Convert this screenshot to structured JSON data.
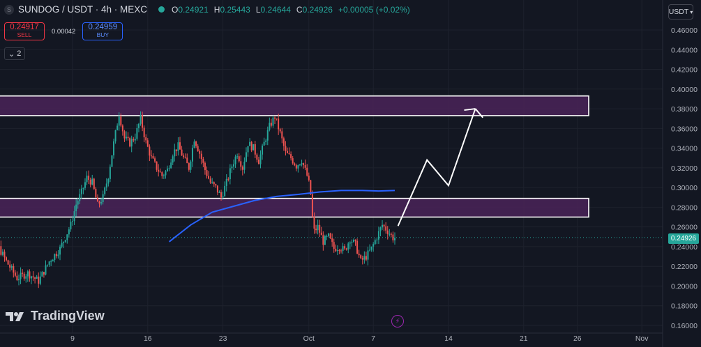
{
  "header": {
    "symbol_icon": "S",
    "symbol": "SUNDOG / USDT · 4h · MEXC",
    "ohlc": [
      {
        "k": "O",
        "v": "0.24921"
      },
      {
        "k": "H",
        "v": "0.25443"
      },
      {
        "k": "L",
        "v": "0.24644"
      },
      {
        "k": "C",
        "v": "0.24926"
      }
    ],
    "change": "+0.00005 (+0.02%)"
  },
  "trade": {
    "sell_price": "0.24917",
    "sell_label": "SELL",
    "spread": "0.00042",
    "buy_price": "0.24959",
    "buy_label": "BUY"
  },
  "collapse_label": "2",
  "currency_unit": "USDT",
  "last_price": "0.24926",
  "logo_text": "TradingView",
  "colors": {
    "up": "#26a69a",
    "down": "#ef5350",
    "ma": "#2962ff",
    "zone": "#4a2358",
    "bg": "#131722"
  },
  "chart_data": {
    "type": "candlestick",
    "y_ticks": [
      "0.46000",
      "0.44000",
      "0.42000",
      "0.40000",
      "0.38000",
      "0.36000",
      "0.34000",
      "0.32000",
      "0.30000",
      "0.28000",
      "0.26000",
      "0.24000",
      "0.22000",
      "0.20000",
      "0.18000",
      "0.16000"
    ],
    "ylim": [
      0.16,
      0.46
    ],
    "x_ticks": [
      {
        "label": "9",
        "day": 9
      },
      {
        "label": "16",
        "day": 16
      },
      {
        "label": "23",
        "day": 23
      },
      {
        "label": "Oct",
        "day": 31
      },
      {
        "label": "7",
        "day": 37
      },
      {
        "label": "14",
        "day": 44
      },
      {
        "label": "21",
        "day": 51
      },
      {
        "label": "26",
        "day": 56
      },
      {
        "label": "Nov",
        "day": 62
      }
    ],
    "price_path": [
      [
        0,
        0.248
      ],
      [
        0.5,
        0.268
      ],
      [
        1,
        0.262
      ],
      [
        2,
        0.245
      ],
      [
        3,
        0.225
      ],
      [
        4,
        0.208
      ],
      [
        5,
        0.213
      ],
      [
        6,
        0.205
      ],
      [
        7,
        0.225
      ],
      [
        8,
        0.238
      ],
      [
        9,
        0.262
      ],
      [
        9.5,
        0.283
      ],
      [
        10,
        0.295
      ],
      [
        10.5,
        0.31
      ],
      [
        11,
        0.305
      ],
      [
        11.5,
        0.282
      ],
      [
        12,
        0.29
      ],
      [
        12.5,
        0.312
      ],
      [
        13,
        0.345
      ],
      [
        13.5,
        0.375
      ],
      [
        14,
        0.35
      ],
      [
        14.5,
        0.345
      ],
      [
        15,
        0.352
      ],
      [
        15.5,
        0.37
      ],
      [
        16,
        0.346
      ],
      [
        16.5,
        0.33
      ],
      [
        17,
        0.32
      ],
      [
        17.5,
        0.312
      ],
      [
        18,
        0.318
      ],
      [
        18.5,
        0.335
      ],
      [
        19,
        0.342
      ],
      [
        19.5,
        0.33
      ],
      [
        20,
        0.32
      ],
      [
        20.5,
        0.35
      ],
      [
        21,
        0.335
      ],
      [
        21.5,
        0.318
      ],
      [
        22,
        0.305
      ],
      [
        22.5,
        0.3
      ],
      [
        23,
        0.29
      ],
      [
        23.5,
        0.305
      ],
      [
        24,
        0.322
      ],
      [
        24.5,
        0.335
      ],
      [
        25,
        0.32
      ],
      [
        25.5,
        0.345
      ],
      [
        26,
        0.34
      ],
      [
        26.5,
        0.327
      ],
      [
        27,
        0.345
      ],
      [
        27.5,
        0.362
      ],
      [
        28,
        0.372
      ],
      [
        28.5,
        0.355
      ],
      [
        29,
        0.335
      ],
      [
        29.5,
        0.33
      ],
      [
        30,
        0.322
      ],
      [
        30.5,
        0.328
      ],
      [
        31,
        0.312
      ],
      [
        31.3,
        0.298
      ],
      [
        31.6,
        0.255
      ],
      [
        32,
        0.26
      ],
      [
        32.5,
        0.245
      ],
      [
        33,
        0.25
      ],
      [
        33.5,
        0.238
      ],
      [
        34,
        0.24
      ],
      [
        34.5,
        0.236
      ],
      [
        35,
        0.248
      ],
      [
        35.5,
        0.242
      ],
      [
        36,
        0.225
      ],
      [
        36.5,
        0.23
      ],
      [
        37,
        0.238
      ],
      [
        37.5,
        0.25
      ],
      [
        38,
        0.262
      ],
      [
        38.5,
        0.256
      ],
      [
        39,
        0.249
      ]
    ],
    "moving_average": [
      [
        18,
        0.245
      ],
      [
        20,
        0.262
      ],
      [
        22,
        0.275
      ],
      [
        24,
        0.281
      ],
      [
        26,
        0.287
      ],
      [
        28,
        0.291
      ],
      [
        30,
        0.293
      ],
      [
        32,
        0.2955
      ],
      [
        34,
        0.297
      ],
      [
        36,
        0.297
      ],
      [
        37.5,
        0.2965
      ],
      [
        39,
        0.297
      ]
    ],
    "zones": [
      {
        "top": 0.393,
        "bottom": 0.373
      },
      {
        "top": 0.289,
        "bottom": 0.27
      }
    ],
    "projection": [
      [
        39.3,
        0.261
      ],
      [
        42,
        0.328
      ],
      [
        44,
        0.302
      ],
      [
        46.5,
        0.38
      ],
      [
        47.2,
        0.371
      ]
    ],
    "last_price_value": 0.24926
  }
}
